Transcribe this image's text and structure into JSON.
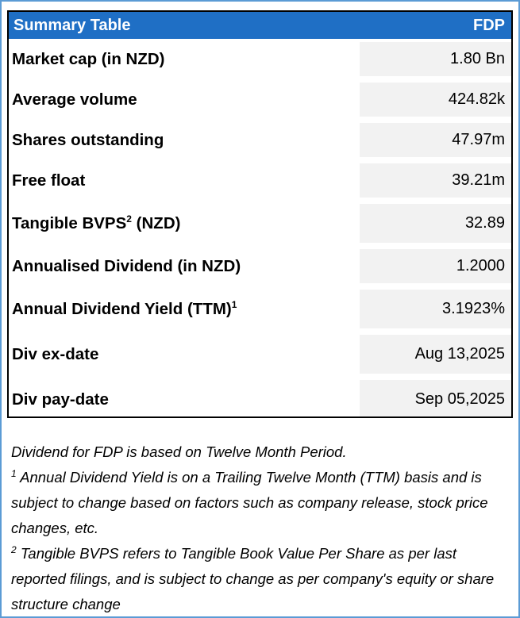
{
  "table": {
    "title": "Summary Table",
    "ticker": "FDP",
    "rows": [
      {
        "label": "Market cap (in NZD)",
        "value": "1.80 Bn"
      },
      {
        "label": "Average volume",
        "value": "424.82k"
      },
      {
        "label": "Shares outstanding",
        "value": "47.97m"
      },
      {
        "label": "Free float",
        "value": "39.21m"
      },
      {
        "label_pre": "Tangible BVPS",
        "label_sup": "2",
        "label_post": " (NZD)",
        "value": "32.89"
      },
      {
        "label": "Annualised Dividend (in NZD)",
        "value": "1.2000"
      },
      {
        "label_pre": "Annual Dividend Yield (TTM)",
        "label_sup": "1",
        "value": "3.1923%"
      },
      {
        "label": "Div ex-date",
        "value": "Aug 13,2025"
      },
      {
        "label": "Div pay-date",
        "value": "Sep 05,2025"
      }
    ]
  },
  "notes": {
    "line1": "Dividend for FDP is based on Twelve Month Period.",
    "note1_sup": "1",
    "note1_text": "  Annual Dividend Yield is on a Trailing Twelve Month (TTM) basis and is subject to change based on factors such as company release, stock price changes, etc.",
    "note2_sup": "2",
    "note2_text": " Tangible BVPS refers to Tangible Book Value Per Share as per last reported filings, and is subject to change as per company's equity or share structure change"
  }
}
